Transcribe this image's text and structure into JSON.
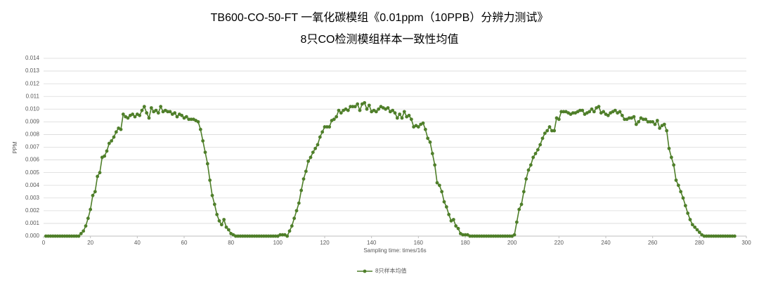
{
  "chart_data": {
    "type": "line",
    "title": "TB600-CO-50-FT 一氧化碳模组《0.01ppm（10PPB）分辨力测试》",
    "subtitle": "8只CO检测模组样本一致性均值",
    "x_label": "Sampling time: times/16s",
    "y_label": "PPM",
    "xlim": [
      0,
      300
    ],
    "xticks": [
      0,
      20,
      40,
      60,
      80,
      100,
      120,
      140,
      160,
      180,
      200,
      220,
      240,
      260,
      280,
      300
    ],
    "ylim": [
      0,
      0.014
    ],
    "yticks": [
      {
        "value": 0,
        "label": "0.000"
      },
      {
        "value": 0.001,
        "label": "0.001"
      },
      {
        "value": 0.002,
        "label": "0.002"
      },
      {
        "value": 0.003,
        "label": "0.003"
      },
      {
        "value": 0.004,
        "label": "0.004"
      },
      {
        "value": 0.005,
        "label": "0.005"
      },
      {
        "value": 0.006,
        "label": "0.006"
      },
      {
        "value": 0.007,
        "label": "0.007"
      },
      {
        "value": 0.008,
        "label": "0.008"
      },
      {
        "value": 0.009,
        "label": "0.009"
      },
      {
        "value": 0.01,
        "label": "0.010"
      },
      {
        "value": 0.011,
        "label": "0.011"
      },
      {
        "value": 0.012,
        "label": "0.012"
      },
      {
        "value": 0.013,
        "label": "0.013"
      },
      {
        "value": 0.014,
        "label": "0.014"
      }
    ],
    "grid": true,
    "legend": "bottom",
    "x": [
      1,
      2,
      3,
      4,
      5,
      6,
      7,
      8,
      9,
      10,
      11,
      12,
      13,
      14,
      15,
      16,
      17,
      18,
      19,
      20,
      21,
      22,
      23,
      24,
      25,
      26,
      27,
      28,
      29,
      30,
      31,
      32,
      33,
      34,
      35,
      36,
      37,
      38,
      39,
      40,
      41,
      42,
      43,
      44,
      45,
      46,
      47,
      48,
      49,
      50,
      51,
      52,
      53,
      54,
      55,
      56,
      57,
      58,
      59,
      60,
      61,
      62,
      63,
      64,
      65,
      66,
      67,
      68,
      69,
      70,
      71,
      72,
      73,
      74,
      75,
      76,
      77,
      78,
      79,
      80,
      81,
      82,
      83,
      84,
      85,
      86,
      87,
      88,
      89,
      90,
      91,
      92,
      93,
      94,
      95,
      96,
      97,
      98,
      99,
      100,
      101,
      102,
      103,
      104,
      105,
      106,
      107,
      108,
      109,
      110,
      111,
      112,
      113,
      114,
      115,
      116,
      117,
      118,
      119,
      120,
      121,
      122,
      123,
      124,
      125,
      126,
      127,
      128,
      129,
      130,
      131,
      132,
      133,
      134,
      135,
      136,
      137,
      138,
      139,
      140,
      141,
      142,
      143,
      144,
      145,
      146,
      147,
      148,
      149,
      150,
      151,
      152,
      153,
      154,
      155,
      156,
      157,
      158,
      159,
      160,
      161,
      162,
      163,
      164,
      165,
      166,
      167,
      168,
      169,
      170,
      171,
      172,
      173,
      174,
      175,
      176,
      177,
      178,
      179,
      180,
      181,
      182,
      183,
      184,
      185,
      186,
      187,
      188,
      189,
      190,
      191,
      192,
      193,
      194,
      195,
      196,
      197,
      198,
      199,
      200,
      201,
      202,
      203,
      204,
      205,
      206,
      207,
      208,
      209,
      210,
      211,
      212,
      213,
      214,
      215,
      216,
      217,
      218,
      219,
      220,
      221,
      222,
      223,
      224,
      225,
      226,
      227,
      228,
      229,
      230,
      231,
      232,
      233,
      234,
      235,
      236,
      237,
      238,
      239,
      240,
      241,
      242,
      243,
      244,
      245,
      246,
      247,
      248,
      249,
      250,
      251,
      252,
      253,
      254,
      255,
      256,
      257,
      258,
      259,
      260,
      261,
      262,
      263,
      264,
      265,
      266,
      267,
      268,
      269,
      270,
      271,
      272,
      273,
      274,
      275,
      276,
      277,
      278,
      279,
      280,
      281,
      282,
      283,
      284,
      285,
      286,
      287,
      288,
      289,
      290,
      291,
      292,
      293,
      294,
      295
    ],
    "series": [
      {
        "name": "8只样本均值",
        "color": "#4f7f2a",
        "values": [
          0,
          0,
          0,
          0,
          0,
          0,
          0,
          0,
          0,
          0,
          0,
          0,
          0,
          0,
          0,
          0.0002,
          0.0004,
          0.0008,
          0.0014,
          0.0021,
          0.0032,
          0.0035,
          0.0047,
          0.005,
          0.0062,
          0.0063,
          0.0067,
          0.0073,
          0.0075,
          0.0078,
          0.0082,
          0.0085,
          0.0084,
          0.0096,
          0.0094,
          0.0093,
          0.0095,
          0.0096,
          0.0094,
          0.0096,
          0.0095,
          0.0099,
          0.0102,
          0.0097,
          0.0093,
          0.0101,
          0.0098,
          0.0099,
          0.0097,
          0.0102,
          0.0098,
          0.0099,
          0.0098,
          0.0098,
          0.0096,
          0.0097,
          0.0094,
          0.0096,
          0.0095,
          0.0093,
          0.0094,
          0.0092,
          0.0092,
          0.0092,
          0.0091,
          0.009,
          0.0084,
          0.0075,
          0.0066,
          0.0057,
          0.0044,
          0.0032,
          0.0025,
          0.0017,
          0.0012,
          0.0009,
          0.0013,
          0.0007,
          0.0005,
          0.0002,
          0.0001,
          0,
          0,
          0,
          0,
          0,
          0,
          0,
          0,
          0,
          0,
          0,
          0,
          0,
          0,
          0,
          0,
          0,
          0,
          0,
          0.0001,
          0.0001,
          0.0001,
          0,
          0.0004,
          0.0008,
          0.0014,
          0.002,
          0.0026,
          0.0036,
          0.0045,
          0.0051,
          0.0059,
          0.0062,
          0.0066,
          0.0069,
          0.0072,
          0.0078,
          0.0082,
          0.0086,
          0.0086,
          0.0086,
          0.0091,
          0.0092,
          0.0094,
          0.0099,
          0.0097,
          0.0099,
          0.01,
          0.0099,
          0.0102,
          0.0102,
          0.0102,
          0.0104,
          0.0099,
          0.0104,
          0.0105,
          0.01,
          0.0103,
          0.0098,
          0.0099,
          0.0098,
          0.01,
          0.0102,
          0.0101,
          0.01,
          0.0101,
          0.0098,
          0.0099,
          0.0097,
          0.0093,
          0.0096,
          0.0093,
          0.0098,
          0.0094,
          0.0095,
          0.0092,
          0.0086,
          0.0087,
          0.0086,
          0.0088,
          0.0089,
          0.0084,
          0.0077,
          0.0074,
          0.0065,
          0.0056,
          0.0042,
          0.004,
          0.0035,
          0.0027,
          0.0023,
          0.0017,
          0.0012,
          0.0013,
          0.0008,
          0.0006,
          0.0002,
          0.0001,
          0.0001,
          0.0001,
          0,
          0,
          0,
          0,
          0,
          0,
          0,
          0,
          0,
          0,
          0,
          0,
          0,
          0,
          0,
          0,
          0,
          0,
          0,
          0.0001,
          0.0011,
          0.0021,
          0.0025,
          0.0035,
          0.0045,
          0.0052,
          0.0056,
          0.0062,
          0.0065,
          0.0068,
          0.0072,
          0.0077,
          0.0081,
          0.0083,
          0.0086,
          0.0083,
          0.0083,
          0.0093,
          0.0092,
          0.0098,
          0.0098,
          0.0098,
          0.0097,
          0.0096,
          0.0097,
          0.0097,
          0.0098,
          0.0099,
          0.0099,
          0.0096,
          0.0097,
          0.0098,
          0.01,
          0.0098,
          0.0101,
          0.0102,
          0.0097,
          0.0098,
          0.0096,
          0.0095,
          0.0097,
          0.0098,
          0.0099,
          0.0097,
          0.0098,
          0.0095,
          0.0092,
          0.0092,
          0.0093,
          0.0093,
          0.0094,
          0.0088,
          0.009,
          0.0093,
          0.0092,
          0.0092,
          0.009,
          0.009,
          0.009,
          0.0088,
          0.0091,
          0.0085,
          0.0087,
          0.0088,
          0.0083,
          0.0069,
          0.0062,
          0.0056,
          0.0044,
          0.004,
          0.0035,
          0.003,
          0.0024,
          0.0018,
          0.0013,
          0.0009,
          0.0007,
          0.0005,
          0.0003,
          0.0001,
          0,
          0,
          0,
          0,
          0,
          0,
          0,
          0,
          0,
          0,
          0,
          0,
          0,
          0
        ]
      }
    ]
  }
}
